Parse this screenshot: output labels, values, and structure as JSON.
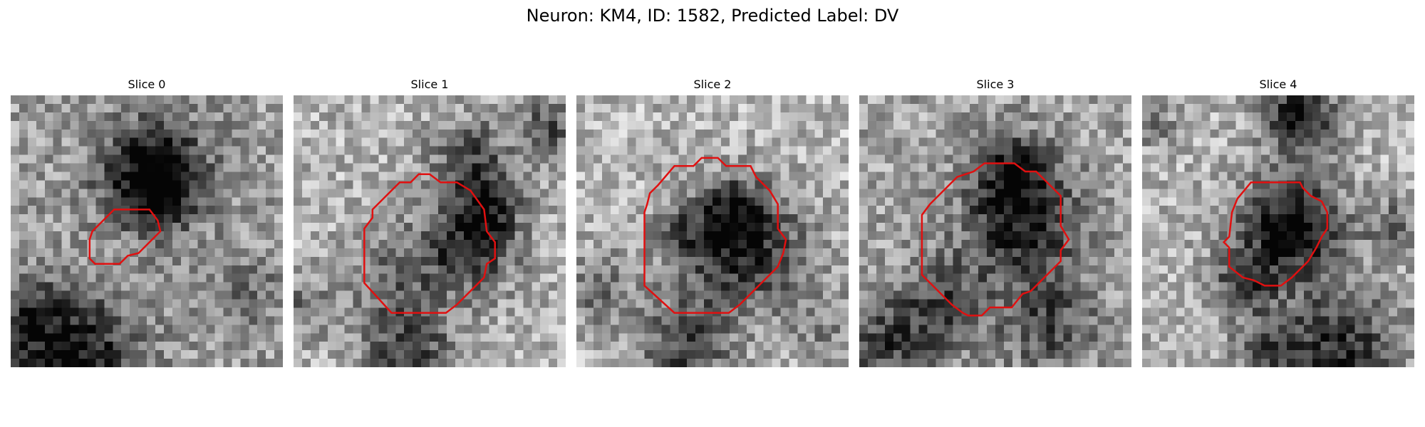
{
  "title": "Neuron: KM4, ID: 1582, Predicted Label: DV",
  "contour_color": "#e01010",
  "colormap": "gray",
  "image_grid": [
    32,
    32
  ],
  "panels": [
    {
      "label": "Slice 0",
      "seed": 11,
      "bias": 0.62,
      "dark_blobs": [
        [
          0.52,
          0.28,
          0.14,
          0.55
        ],
        [
          0.55,
          0.35,
          0.1,
          0.35
        ],
        [
          0.25,
          0.97,
          0.16,
          0.55
        ],
        [
          0.05,
          0.82,
          0.12,
          0.3
        ],
        [
          0.85,
          0.72,
          0.1,
          0.2
        ]
      ],
      "contour": [
        [
          0.29,
          0.55
        ],
        [
          0.29,
          0.6
        ],
        [
          0.31,
          0.62
        ],
        [
          0.4,
          0.62
        ],
        [
          0.43,
          0.59
        ],
        [
          0.47,
          0.58
        ],
        [
          0.5,
          0.55
        ],
        [
          0.55,
          0.5
        ],
        [
          0.54,
          0.46
        ],
        [
          0.51,
          0.42
        ],
        [
          0.49,
          0.42
        ],
        [
          0.38,
          0.42
        ],
        [
          0.35,
          0.45
        ],
        [
          0.3,
          0.5
        ],
        [
          0.29,
          0.53
        ]
      ]
    },
    {
      "label": "Slice 1",
      "seed": 23,
      "bias": 0.7,
      "dark_blobs": [
        [
          0.65,
          0.55,
          0.12,
          0.55
        ],
        [
          0.72,
          0.4,
          0.08,
          0.4
        ],
        [
          0.65,
          0.23,
          0.1,
          0.4
        ],
        [
          0.93,
          0.12,
          0.07,
          0.4
        ],
        [
          0.38,
          0.65,
          0.12,
          0.25
        ],
        [
          0.42,
          0.93,
          0.12,
          0.45
        ],
        [
          0.05,
          0.77,
          0.08,
          0.25
        ]
      ],
      "contour": [
        [
          0.26,
          0.52
        ],
        [
          0.26,
          0.69
        ],
        [
          0.36,
          0.8
        ],
        [
          0.56,
          0.8
        ],
        [
          0.6,
          0.77
        ],
        [
          0.61,
          0.76
        ],
        [
          0.7,
          0.67
        ],
        [
          0.71,
          0.62
        ],
        [
          0.74,
          0.6
        ],
        [
          0.74,
          0.54
        ],
        [
          0.71,
          0.5
        ],
        [
          0.7,
          0.42
        ],
        [
          0.65,
          0.35
        ],
        [
          0.6,
          0.32
        ],
        [
          0.54,
          0.32
        ],
        [
          0.5,
          0.29
        ],
        [
          0.46,
          0.29
        ],
        [
          0.43,
          0.32
        ],
        [
          0.39,
          0.32
        ],
        [
          0.29,
          0.42
        ],
        [
          0.29,
          0.45
        ],
        [
          0.26,
          0.49
        ]
      ]
    },
    {
      "label": "Slice 2",
      "seed": 37,
      "bias": 0.72,
      "dark_blobs": [
        [
          0.6,
          0.55,
          0.16,
          0.65
        ],
        [
          0.58,
          0.4,
          0.06,
          0.3
        ],
        [
          0.4,
          0.5,
          0.08,
          0.2
        ],
        [
          0.4,
          0.93,
          0.12,
          0.45
        ],
        [
          0.08,
          0.72,
          0.1,
          0.3
        ],
        [
          0.9,
          0.85,
          0.1,
          0.2
        ]
      ],
      "contour": [
        [
          0.26,
          0.4
        ],
        [
          0.25,
          0.43
        ],
        [
          0.25,
          0.7
        ],
        [
          0.36,
          0.8
        ],
        [
          0.56,
          0.8
        ],
        [
          0.6,
          0.77
        ],
        [
          0.61,
          0.76
        ],
        [
          0.74,
          0.63
        ],
        [
          0.76,
          0.58
        ],
        [
          0.77,
          0.53
        ],
        [
          0.74,
          0.49
        ],
        [
          0.74,
          0.4
        ],
        [
          0.71,
          0.35
        ],
        [
          0.66,
          0.3
        ],
        [
          0.64,
          0.26
        ],
        [
          0.55,
          0.26
        ],
        [
          0.52,
          0.23
        ],
        [
          0.46,
          0.23
        ],
        [
          0.43,
          0.26
        ],
        [
          0.36,
          0.26
        ],
        [
          0.3,
          0.33
        ],
        [
          0.27,
          0.36
        ]
      ]
    },
    {
      "label": "Slice 3",
      "seed": 41,
      "bias": 0.64,
      "dark_blobs": [
        [
          0.6,
          0.48,
          0.15,
          0.55
        ],
        [
          0.56,
          0.27,
          0.1,
          0.4
        ],
        [
          0.3,
          0.78,
          0.12,
          0.35
        ],
        [
          0.7,
          0.85,
          0.12,
          0.35
        ],
        [
          0.1,
          0.93,
          0.12,
          0.35
        ]
      ],
      "contour": [
        [
          0.26,
          0.4
        ],
        [
          0.23,
          0.44
        ],
        [
          0.23,
          0.66
        ],
        [
          0.34,
          0.77
        ],
        [
          0.38,
          0.8
        ],
        [
          0.4,
          0.81
        ],
        [
          0.45,
          0.81
        ],
        [
          0.48,
          0.78
        ],
        [
          0.56,
          0.78
        ],
        [
          0.6,
          0.73
        ],
        [
          0.63,
          0.72
        ],
        [
          0.74,
          0.61
        ],
        [
          0.74,
          0.57
        ],
        [
          0.77,
          0.53
        ],
        [
          0.74,
          0.48
        ],
        [
          0.74,
          0.37
        ],
        [
          0.67,
          0.3
        ],
        [
          0.65,
          0.28
        ],
        [
          0.61,
          0.28
        ],
        [
          0.57,
          0.25
        ],
        [
          0.53,
          0.25
        ],
        [
          0.46,
          0.25
        ],
        [
          0.42,
          0.28
        ],
        [
          0.36,
          0.3
        ],
        [
          0.3,
          0.36
        ]
      ]
    },
    {
      "label": "Slice 4",
      "seed": 53,
      "bias": 0.7,
      "dark_blobs": [
        [
          0.55,
          0.48,
          0.13,
          0.7
        ],
        [
          0.58,
          0.08,
          0.09,
          0.65
        ],
        [
          0.38,
          0.68,
          0.08,
          0.45
        ],
        [
          0.72,
          0.93,
          0.16,
          0.55
        ],
        [
          0.45,
          0.93,
          0.08,
          0.3
        ],
        [
          0.05,
          0.12,
          0.05,
          0.3
        ],
        [
          0.92,
          0.48,
          0.07,
          0.3
        ]
      ],
      "contour": [
        [
          0.33,
          0.43
        ],
        [
          0.32,
          0.52
        ],
        [
          0.3,
          0.54
        ],
        [
          0.32,
          0.56
        ],
        [
          0.32,
          0.63
        ],
        [
          0.37,
          0.67
        ],
        [
          0.41,
          0.68
        ],
        [
          0.45,
          0.7
        ],
        [
          0.51,
          0.7
        ],
        [
          0.55,
          0.67
        ],
        [
          0.61,
          0.61
        ],
        [
          0.64,
          0.56
        ],
        [
          0.66,
          0.52
        ],
        [
          0.68,
          0.49
        ],
        [
          0.68,
          0.43
        ],
        [
          0.66,
          0.39
        ],
        [
          0.62,
          0.37
        ],
        [
          0.59,
          0.34
        ],
        [
          0.58,
          0.32
        ],
        [
          0.45,
          0.32
        ],
        [
          0.4,
          0.32
        ],
        [
          0.35,
          0.38
        ]
      ]
    }
  ]
}
